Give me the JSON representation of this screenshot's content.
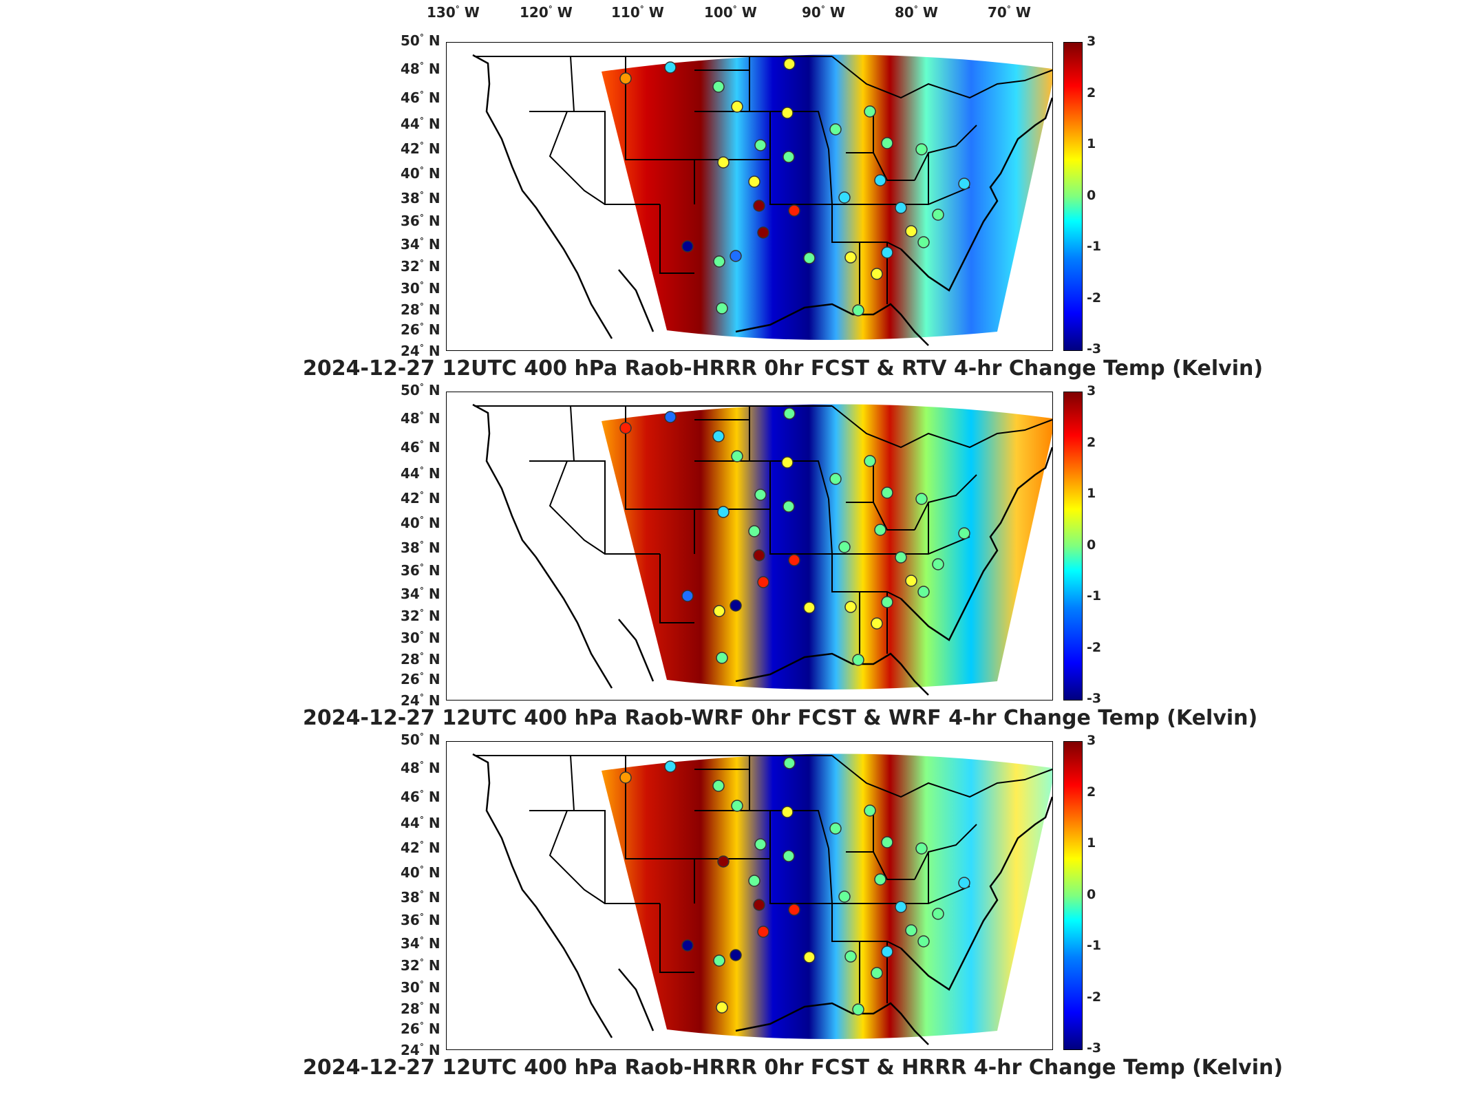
{
  "longitude_labels": [
    {
      "deg": "130",
      "hemi": "W"
    },
    {
      "deg": "120",
      "hemi": "W"
    },
    {
      "deg": "110",
      "hemi": "W"
    },
    {
      "deg": "100",
      "hemi": "W"
    },
    {
      "deg": "90",
      "hemi": "W"
    },
    {
      "deg": "80",
      "hemi": "W"
    },
    {
      "deg": "70",
      "hemi": "W"
    }
  ],
  "latitude_labels": [
    {
      "deg": "50",
      "hemi": "N"
    },
    {
      "deg": "48",
      "hemi": "N"
    },
    {
      "deg": "46",
      "hemi": "N"
    },
    {
      "deg": "44",
      "hemi": "N"
    },
    {
      "deg": "42",
      "hemi": "N"
    },
    {
      "deg": "40",
      "hemi": "N"
    },
    {
      "deg": "38",
      "hemi": "N"
    },
    {
      "deg": "36",
      "hemi": "N"
    },
    {
      "deg": "34",
      "hemi": "N"
    },
    {
      "deg": "32",
      "hemi": "N"
    },
    {
      "deg": "30",
      "hemi": "N"
    },
    {
      "deg": "28",
      "hemi": "N"
    },
    {
      "deg": "26",
      "hemi": "N"
    },
    {
      "deg": "24",
      "hemi": "N"
    }
  ],
  "colorbar": {
    "ticks": [
      "3",
      "2",
      "1",
      "0",
      "-1",
      "-2",
      "-3"
    ],
    "range": [
      -3,
      3
    ],
    "colormap": "jet"
  },
  "panels": [
    {
      "title": "2024-12-27 12UTC 400 hPa Raob-HRRR 0hr FCST & RTV 4-hr Change Temp (Kelvin)"
    },
    {
      "title": "2024-12-27 12UTC 400 hPa Raob-WRF 0hr FCST & WRF 4-hr Change Temp (Kelvin)"
    },
    {
      "title": "2024-12-27 12UTC 400 hPa Raob-HRRR 0hr FCST & HRRR 4-hr Change Temp (Kelvin)"
    }
  ],
  "colors": {
    "dark_red": "#8b0000",
    "red": "#ff2000",
    "orange": "#ff9900",
    "yellow": "#ffff33",
    "cyan": "#33ddff",
    "blue": "#1e6fff",
    "dark_blue": "#00008f",
    "green": "#66ff99"
  }
}
